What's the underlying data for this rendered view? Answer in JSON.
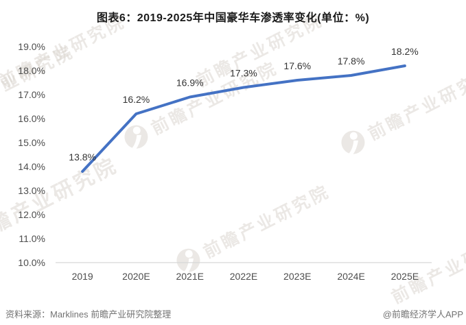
{
  "title": "图表6：2019-2025年中国豪华车渗透率变化(单位：%)",
  "chart_data": {
    "type": "line",
    "title": "图表6：2019-2025年中国豪华车渗透率变化(单位：%)",
    "categories": [
      "2019",
      "2020E",
      "2021E",
      "2022E",
      "2023E",
      "2024E",
      "2025E"
    ],
    "values": [
      13.8,
      16.2,
      16.9,
      17.3,
      17.6,
      17.8,
      18.2
    ],
    "point_labels": [
      "13.8%",
      "16.2%",
      "16.9%",
      "17.3%",
      "17.6%",
      "17.8%",
      "18.2%"
    ],
    "series_name": "豪华车渗透率",
    "y_ticks": [
      "19.0%",
      "18.0%",
      "17.0%",
      "16.0%",
      "15.0%",
      "14.0%",
      "13.0%",
      "12.0%",
      "11.0%",
      "10.0%"
    ],
    "ylim": [
      10.0,
      19.0
    ],
    "y_tick_step": 1.0,
    "xlabel": "",
    "ylabel": "",
    "grid": false,
    "legend_position": "none",
    "line_color": "#4472C4"
  },
  "footer": {
    "source_label": "资料来源：Marklines 前瞻产业研究院整理",
    "credit_label": "@前瞻经济学人APP"
  },
  "watermark": {
    "text": "前瞻产业研究院",
    "color": "#d8d3cc"
  },
  "colors": {
    "line": "#4472C4",
    "axis_line": "#d6d6d6",
    "tick_text": "#4d4d4d",
    "data_label_text": "#333333",
    "title_text": "#1a1a1a",
    "footer_text": "#737373",
    "background": "#ffffff"
  }
}
